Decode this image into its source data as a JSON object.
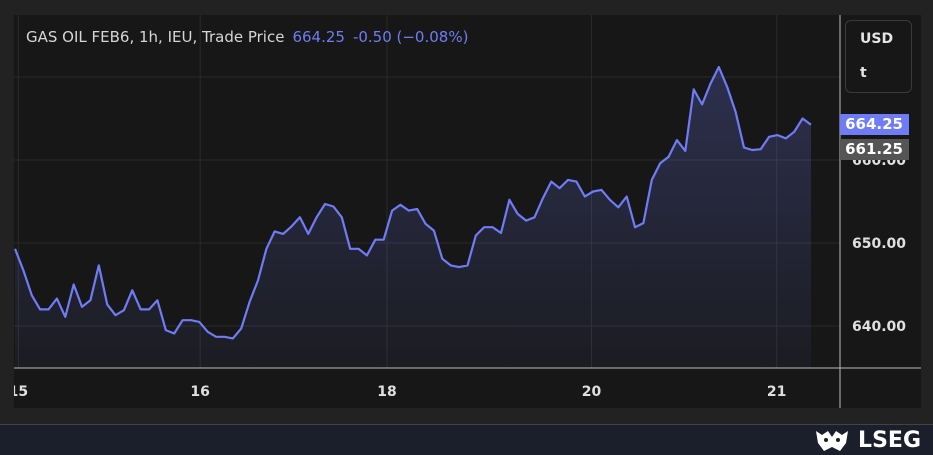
{
  "header": {
    "instrument": "GAS OIL FEB6, 1h, IEU, Trade Price",
    "last": "664.25",
    "change": "-0.50 (−0.08%)"
  },
  "units": {
    "currency": "USD",
    "unit": "t"
  },
  "price_labels": {
    "last": "664.25",
    "reference": "661.25"
  },
  "footer": {
    "brand": "LSEG"
  },
  "colors": {
    "line": "#6f7cf5",
    "last_label": "#6f7cf5",
    "reference_label": "#555555"
  },
  "chart_data": {
    "type": "area",
    "title": "GAS OIL FEB6, 1h, IEU, Trade Price",
    "ylim": [
      633,
      675
    ],
    "y_ticks": [
      640,
      650,
      660,
      670
    ],
    "y_tick_labels": [
      "640.00",
      "650.00",
      "660.00",
      ""
    ],
    "x_ticks": [
      {
        "label": "15",
        "index": 0.4
      },
      {
        "label": "16",
        "index": 22.1
      },
      {
        "label": "18",
        "index": 44.4
      },
      {
        "label": "20",
        "index": 68.8
      },
      {
        "label": "21",
        "index": 90.9
      }
    ],
    "grid": true,
    "series": [
      {
        "values": [
          649.3,
          646.7,
          643.7,
          642.0,
          642.0,
          643.3,
          641.1,
          645.0,
          642.3,
          643.1,
          647.3,
          642.6,
          641.3,
          641.9,
          644.3,
          642.0,
          642.0,
          643.1,
          639.5,
          639.1,
          640.7,
          640.7,
          640.5,
          639.3,
          638.7,
          638.7,
          638.5,
          639.7,
          642.9,
          645.5,
          649.3,
          651.4,
          651.1,
          652.0,
          653.1,
          651.1,
          653.1,
          654.7,
          654.4,
          653.1,
          649.3,
          649.3,
          648.5,
          650.4,
          650.4,
          653.9,
          654.6,
          653.9,
          654.1,
          652.3,
          651.5,
          648.1,
          647.3,
          647.1,
          647.3,
          650.9,
          651.9,
          651.9,
          651.2,
          655.2,
          653.5,
          652.7,
          653.1,
          655.4,
          657.4,
          656.6,
          657.6,
          657.4,
          655.6,
          656.2,
          656.4,
          655.2,
          654.3,
          655.6,
          651.9,
          652.4,
          657.6,
          659.6,
          660.4,
          662.4,
          661.1,
          668.5,
          666.7,
          669.2,
          671.2,
          668.8,
          665.8,
          661.5,
          661.2,
          661.3,
          662.8,
          663.0,
          662.6,
          663.4,
          665.0,
          664.25
        ]
      }
    ]
  }
}
